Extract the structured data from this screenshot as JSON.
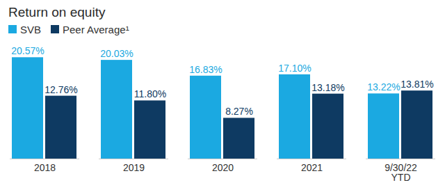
{
  "chart_data": {
    "type": "bar",
    "title": "Return on equity",
    "categories": [
      "2018",
      "2019",
      "2020",
      "2021",
      "9/30/22 YTD"
    ],
    "series": [
      {
        "name": "SVB",
        "color": "#1ba9e1",
        "values": [
          20.57,
          20.03,
          16.83,
          17.1,
          13.22
        ],
        "value_labels": [
          "20.57%",
          "20.03%",
          "16.83%",
          "17.10%",
          "13.22%"
        ]
      },
      {
        "name": "Peer Average¹",
        "color": "#0e3a62",
        "values": [
          12.76,
          11.8,
          8.27,
          13.18,
          13.81
        ],
        "value_labels": [
          "12.76%",
          "11.80%",
          "8.27%",
          "13.18%",
          "13.81%"
        ]
      }
    ],
    "ylim": [
      0,
      24
    ],
    "data_labels": true,
    "tick_labels": "x",
    "legend": "top-left"
  }
}
